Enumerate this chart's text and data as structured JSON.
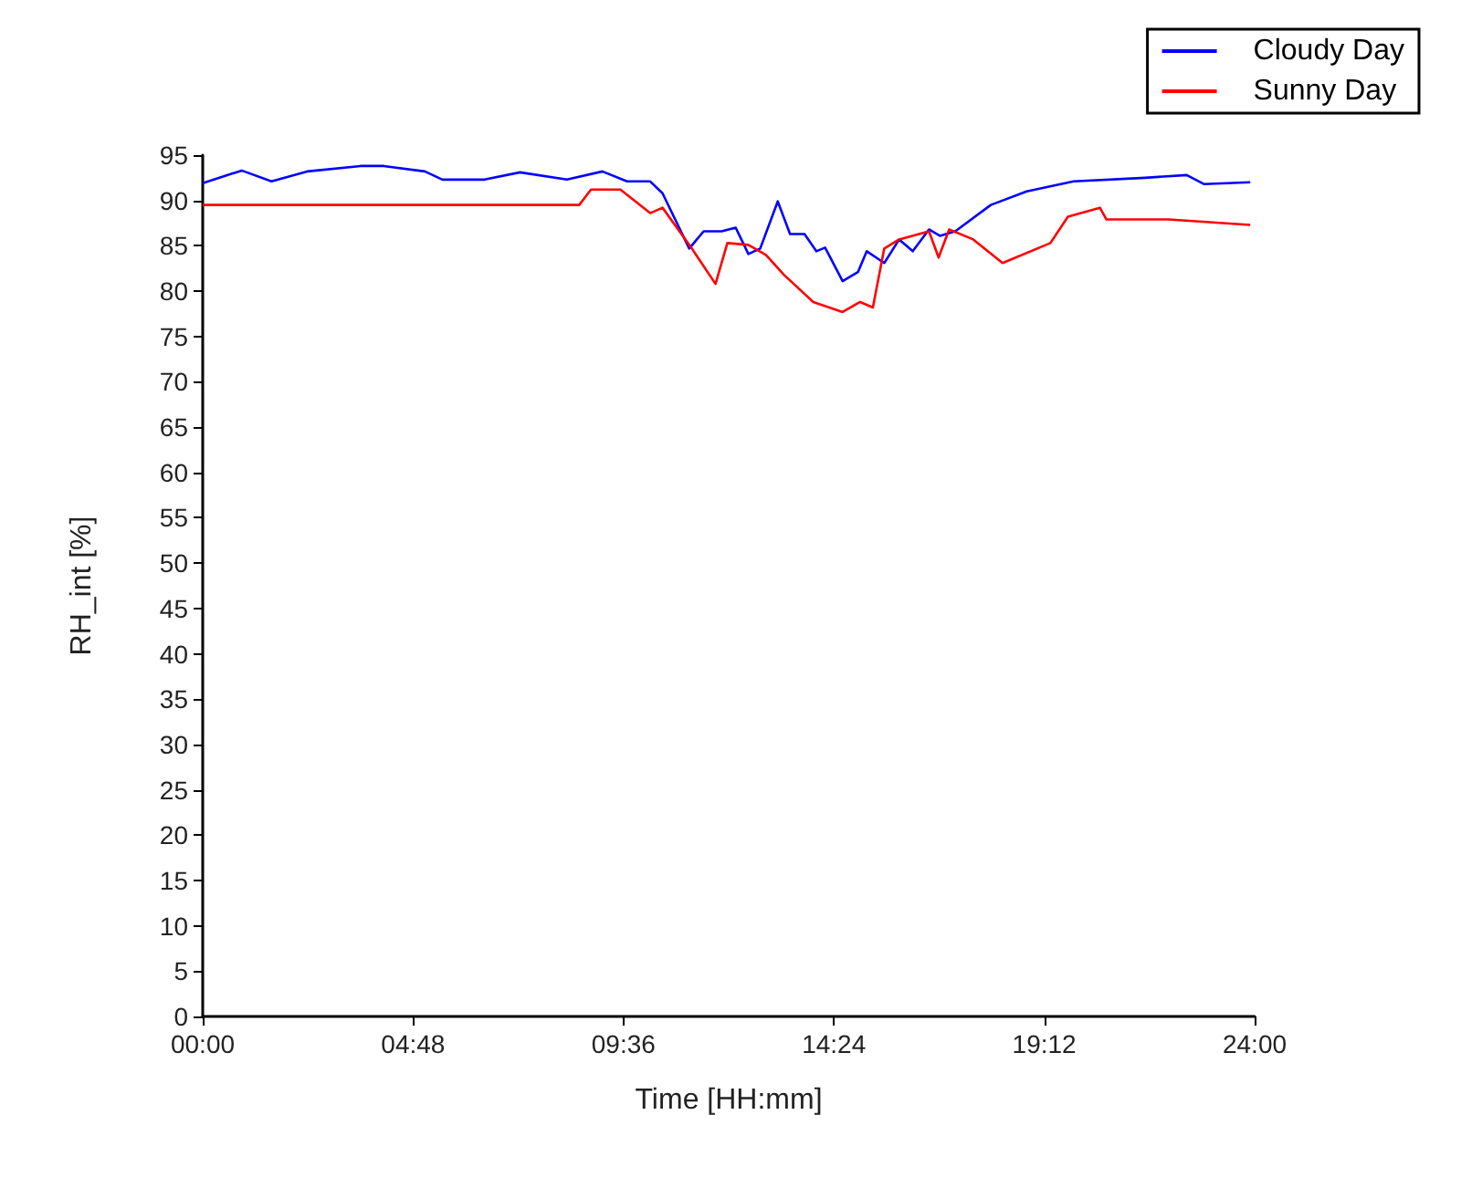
{
  "chart_data": {
    "type": "line",
    "xlabel": "Time [HH:mm]",
    "ylabel": "RH_int [%]",
    "xlim": [
      0,
      24
    ],
    "xticks": [
      {
        "value": 0,
        "label": "00:00"
      },
      {
        "value": 4.8,
        "label": "04:48"
      },
      {
        "value": 9.6,
        "label": "09:36"
      },
      {
        "value": 14.4,
        "label": "14:24"
      },
      {
        "value": 19.2,
        "label": "19:12"
      },
      {
        "value": 24,
        "label": "24:00"
      }
    ],
    "ylim": [
      0,
      95
    ],
    "yticks": [
      0,
      5,
      10,
      15,
      20,
      25,
      30,
      35,
      40,
      45,
      50,
      55,
      60,
      65,
      70,
      75,
      80,
      85,
      90,
      95
    ],
    "grid": false,
    "legend": "top right",
    "marker": "none",
    "line_style": "solid",
    "series": [
      {
        "name": "Cloudy Day",
        "color": "#0000ff",
        "x": [
          0,
          0.89,
          1.57,
          2.38,
          3.6,
          4.13,
          5.07,
          5.47,
          6.43,
          7.24,
          8.31,
          9.12,
          9.68,
          10.21,
          10.49,
          11.1,
          11.43,
          11.84,
          12.16,
          12.45,
          12.72,
          13.12,
          13.4,
          13.73,
          14.0,
          14.2,
          14.6,
          14.95,
          15.15,
          15.55,
          15.89,
          16.2,
          16.57,
          16.82,
          17.17,
          17.98,
          18.8,
          19.87,
          21.5,
          22.45,
          22.85,
          23.9
        ],
        "values": [
          91.9,
          93.3,
          92.1,
          93.2,
          93.8,
          93.8,
          93.2,
          92.3,
          92.3,
          93.1,
          92.3,
          93.2,
          92.1,
          92.1,
          90.8,
          84.7,
          86.6,
          86.6,
          87.0,
          84.1,
          84.7,
          89.9,
          86.3,
          86.3,
          84.4,
          84.8,
          81.1,
          82.1,
          84.4,
          83.1,
          85.7,
          84.4,
          86.8,
          86.1,
          86.6,
          89.5,
          91.0,
          92.1,
          92.5,
          92.8,
          91.8,
          92.0
        ]
      },
      {
        "name": "Sunny Day",
        "color": "#ff0000",
        "x": [
          0,
          8.59,
          8.86,
          9.53,
          10.21,
          10.49,
          11.16,
          11.7,
          11.97,
          12.45,
          12.85,
          13.26,
          13.93,
          14.6,
          15.0,
          15.29,
          15.55,
          15.89,
          16.57,
          16.79,
          17.03,
          17.58,
          18.25,
          19.34,
          19.74,
          20.47,
          20.62,
          22.04,
          23.9
        ],
        "values": [
          89.5,
          89.5,
          91.2,
          91.2,
          88.6,
          89.2,
          84.7,
          80.8,
          85.3,
          85.1,
          84.0,
          81.8,
          78.8,
          77.7,
          78.8,
          78.2,
          84.7,
          85.7,
          86.6,
          83.7,
          86.8,
          85.7,
          83.1,
          85.3,
          88.2,
          89.2,
          87.9,
          87.9,
          87.3
        ]
      }
    ]
  }
}
